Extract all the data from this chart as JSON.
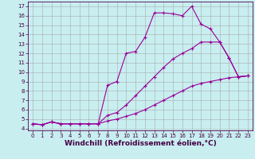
{
  "xlabel": "Windchill (Refroidissement éolien,°C)",
  "bg_color": "#c8eef0",
  "line_color": "#990099",
  "grid_color": "#aaaaaa",
  "xlim": [
    -0.5,
    23.5
  ],
  "ylim": [
    3.8,
    17.5
  ],
  "xticks": [
    0,
    1,
    2,
    3,
    4,
    5,
    6,
    7,
    8,
    9,
    10,
    11,
    12,
    13,
    14,
    15,
    16,
    17,
    18,
    19,
    20,
    21,
    22,
    23
  ],
  "yticks": [
    4,
    5,
    6,
    7,
    8,
    9,
    10,
    11,
    12,
    13,
    14,
    15,
    16,
    17
  ],
  "line1_x": [
    0,
    1,
    2,
    3,
    4,
    5,
    6,
    7,
    8,
    9,
    10,
    11,
    12,
    13,
    14,
    15,
    16,
    17,
    18,
    19,
    20,
    21,
    22,
    23
  ],
  "line1_y": [
    4.5,
    4.4,
    4.7,
    4.5,
    4.5,
    4.5,
    4.5,
    4.5,
    8.6,
    9.0,
    12.0,
    12.2,
    13.7,
    16.3,
    16.3,
    16.2,
    16.0,
    17.0,
    15.1,
    14.6,
    13.2,
    11.5,
    9.5,
    9.6
  ],
  "line2_x": [
    0,
    1,
    2,
    3,
    4,
    5,
    6,
    7,
    8,
    9,
    10,
    11,
    12,
    13,
    14,
    15,
    16,
    17,
    18,
    19,
    20,
    21,
    22,
    23
  ],
  "line2_y": [
    4.5,
    4.4,
    4.7,
    4.5,
    4.5,
    4.5,
    4.5,
    4.5,
    5.4,
    5.7,
    6.5,
    7.5,
    8.5,
    9.5,
    10.5,
    11.4,
    12.0,
    12.5,
    13.2,
    13.2,
    13.2,
    11.5,
    9.5,
    9.6
  ],
  "line3_x": [
    0,
    1,
    2,
    3,
    4,
    5,
    6,
    7,
    8,
    9,
    10,
    11,
    12,
    13,
    14,
    15,
    16,
    17,
    18,
    19,
    20,
    21,
    22,
    23
  ],
  "line3_y": [
    4.5,
    4.4,
    4.7,
    4.5,
    4.5,
    4.5,
    4.5,
    4.5,
    4.8,
    5.0,
    5.3,
    5.6,
    6.0,
    6.5,
    7.0,
    7.5,
    8.0,
    8.5,
    8.8,
    9.0,
    9.2,
    9.4,
    9.5,
    9.6
  ],
  "marker": "+",
  "markersize": 3,
  "linewidth": 0.8,
  "tick_fontsize": 5,
  "label_fontsize": 6.5
}
